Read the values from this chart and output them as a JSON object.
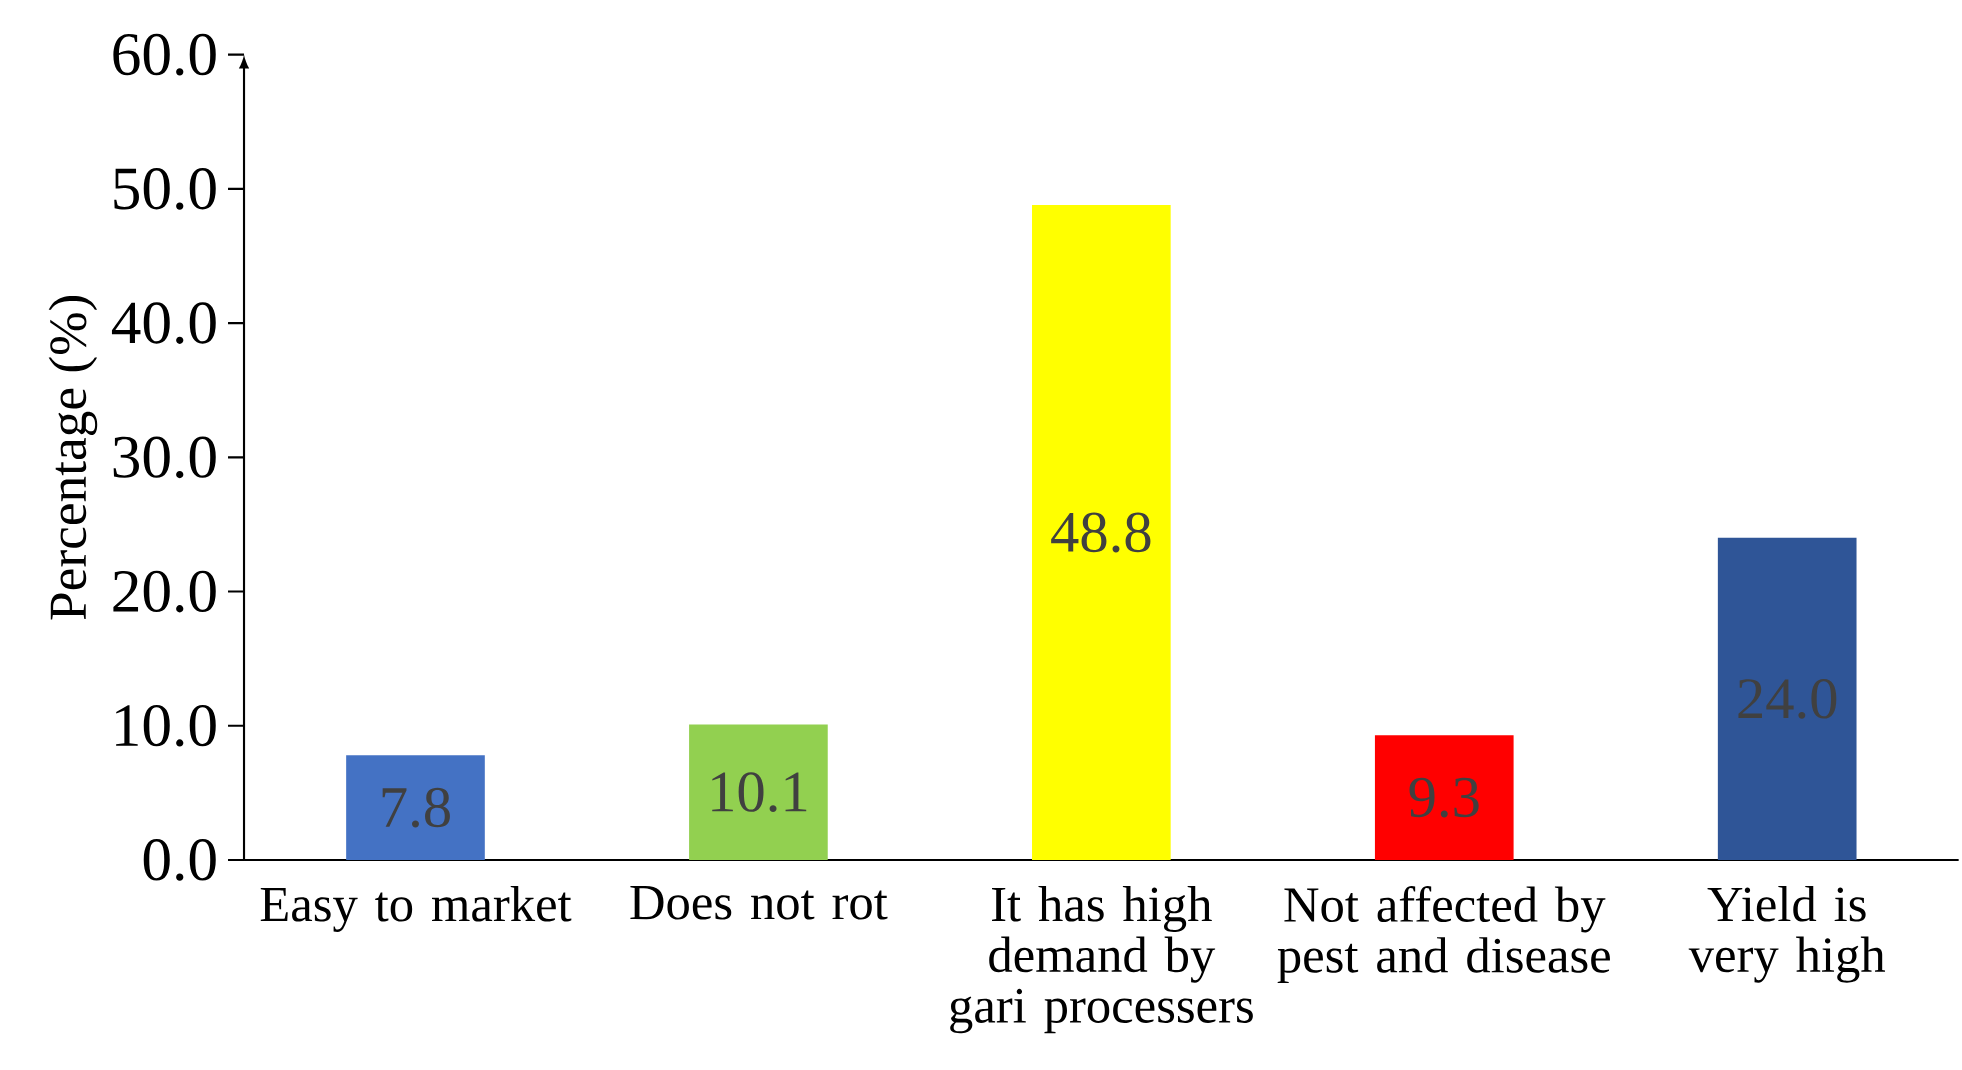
{
  "chart_data": {
    "type": "bar",
    "ylabel": "Percentage (%)",
    "categories": [
      "Easy to market",
      "Does not rot",
      "It has high demand by gari processers",
      "Not affected by pest and disease",
      "Yield is very high"
    ],
    "values": [
      7.8,
      10.1,
      48.8,
      9.3,
      24.0
    ],
    "colors": [
      "#4472c4",
      "#92d050",
      "#ffff00",
      "#ff0000",
      "#2f5597"
    ],
    "value_labels": [
      "7.8",
      "10.1",
      "48.8",
      "9.3",
      "24.0"
    ],
    "ylim": [
      0,
      60
    ],
    "yticks": [
      {
        "value": 0,
        "label": "0.0"
      },
      {
        "value": 10,
        "label": "10.0"
      },
      {
        "value": 20,
        "label": "20.0"
      },
      {
        "value": 30,
        "label": "30.0"
      },
      {
        "value": 40,
        "label": "40.0"
      },
      {
        "value": 50,
        "label": "50.0"
      },
      {
        "value": 60,
        "label": "60.0"
      }
    ],
    "grid": false
  }
}
